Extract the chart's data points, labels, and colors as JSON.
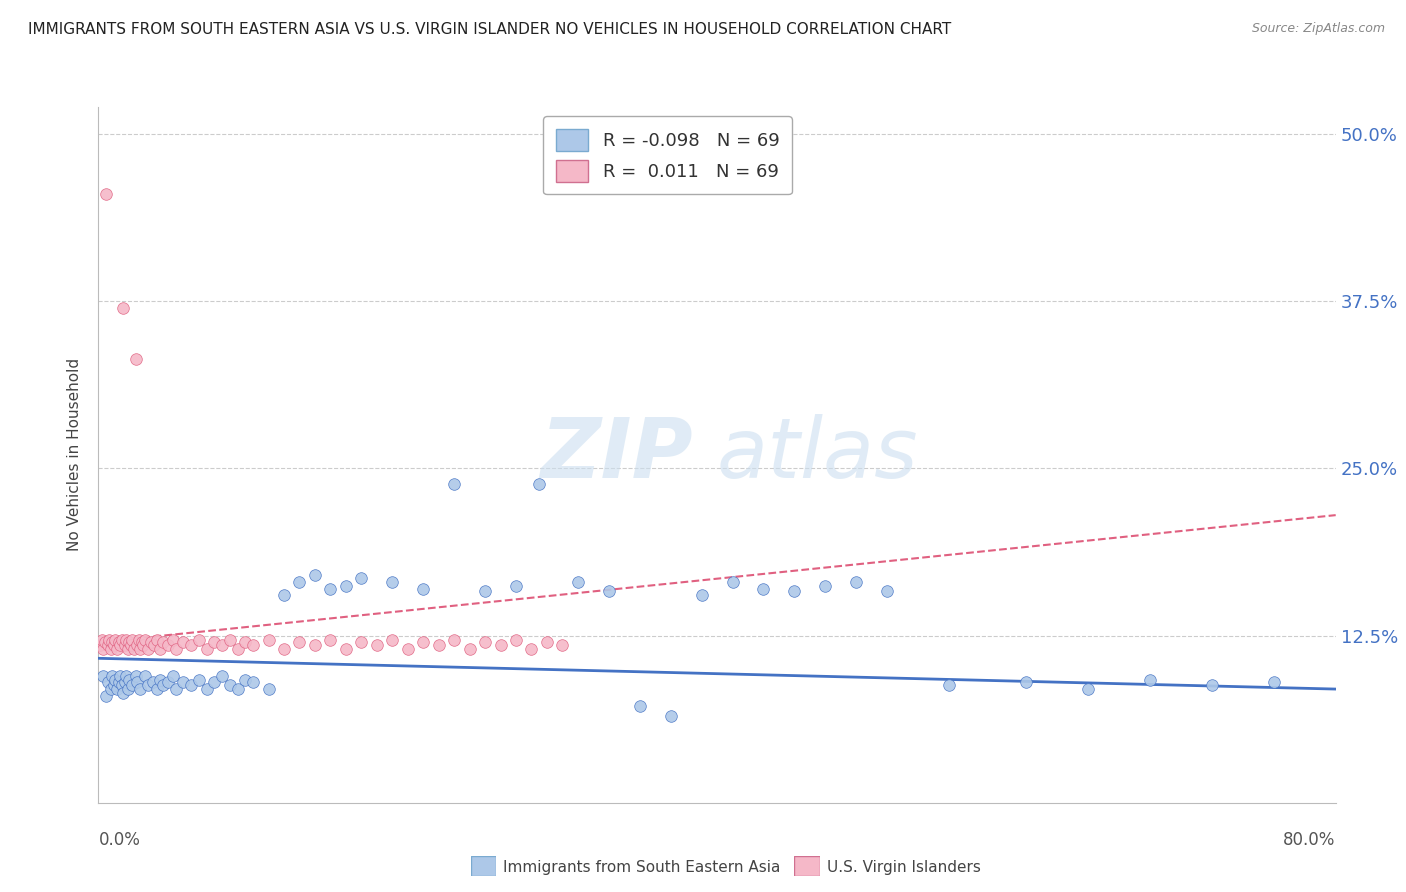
{
  "title": "IMMIGRANTS FROM SOUTH EASTERN ASIA VS U.S. VIRGIN ISLANDER NO VEHICLES IN HOUSEHOLD CORRELATION CHART",
  "source": "Source: ZipAtlas.com",
  "ylabel": "No Vehicles in Household",
  "yticks": [
    0.0,
    0.125,
    0.25,
    0.375,
    0.5
  ],
  "ytick_labels": [
    "",
    "12.5%",
    "25.0%",
    "37.5%",
    "50.0%"
  ],
  "xlim": [
    0.0,
    0.8
  ],
  "ylim": [
    0.0,
    0.52
  ],
  "legend1_label": "Immigrants from South Eastern Asia",
  "legend2_label": "U.S. Virgin Islanders",
  "r1": -0.098,
  "n1": 69,
  "r2": 0.011,
  "n2": 69,
  "color_blue": "#adc8e8",
  "color_pink": "#f5b8c8",
  "color_blue_line": "#4472c4",
  "color_pink_line": "#e06080",
  "watermark_zip": "ZIP",
  "watermark_atlas": "atlas",
  "blue_trend_x0": 0.0,
  "blue_trend_y0": 0.108,
  "blue_trend_x1": 0.8,
  "blue_trend_y1": 0.085,
  "pink_trend_x0": 0.0,
  "pink_trend_y0": 0.12,
  "pink_trend_x1": 0.8,
  "pink_trend_y1": 0.215,
  "blue_x": [
    0.003,
    0.005,
    0.006,
    0.008,
    0.009,
    0.01,
    0.011,
    0.012,
    0.013,
    0.014,
    0.015,
    0.016,
    0.017,
    0.018,
    0.019,
    0.02,
    0.022,
    0.024,
    0.025,
    0.027,
    0.03,
    0.032,
    0.035,
    0.038,
    0.04,
    0.042,
    0.045,
    0.048,
    0.05,
    0.055,
    0.06,
    0.065,
    0.07,
    0.075,
    0.08,
    0.085,
    0.09,
    0.095,
    0.1,
    0.11,
    0.12,
    0.13,
    0.14,
    0.15,
    0.16,
    0.17,
    0.19,
    0.21,
    0.23,
    0.25,
    0.27,
    0.285,
    0.31,
    0.33,
    0.35,
    0.37,
    0.39,
    0.41,
    0.43,
    0.45,
    0.47,
    0.49,
    0.51,
    0.55,
    0.6,
    0.64,
    0.68,
    0.72,
    0.76
  ],
  "blue_y": [
    0.095,
    0.08,
    0.09,
    0.085,
    0.095,
    0.088,
    0.092,
    0.085,
    0.09,
    0.095,
    0.088,
    0.082,
    0.09,
    0.095,
    0.085,
    0.092,
    0.088,
    0.095,
    0.09,
    0.085,
    0.095,
    0.088,
    0.09,
    0.085,
    0.092,
    0.088,
    0.09,
    0.095,
    0.085,
    0.09,
    0.088,
    0.092,
    0.085,
    0.09,
    0.095,
    0.088,
    0.085,
    0.092,
    0.09,
    0.085,
    0.155,
    0.165,
    0.17,
    0.16,
    0.162,
    0.168,
    0.165,
    0.16,
    0.238,
    0.158,
    0.162,
    0.238,
    0.165,
    0.158,
    0.072,
    0.065,
    0.155,
    0.165,
    0.16,
    0.158,
    0.162,
    0.165,
    0.158,
    0.088,
    0.09,
    0.085,
    0.092,
    0.088,
    0.09
  ],
  "pink_x": [
    0.001,
    0.002,
    0.003,
    0.004,
    0.005,
    0.006,
    0.007,
    0.008,
    0.009,
    0.01,
    0.011,
    0.012,
    0.013,
    0.014,
    0.015,
    0.016,
    0.017,
    0.018,
    0.019,
    0.02,
    0.021,
    0.022,
    0.023,
    0.024,
    0.025,
    0.026,
    0.027,
    0.028,
    0.029,
    0.03,
    0.032,
    0.034,
    0.036,
    0.038,
    0.04,
    0.042,
    0.045,
    0.048,
    0.05,
    0.055,
    0.06,
    0.065,
    0.07,
    0.075,
    0.08,
    0.085,
    0.09,
    0.095,
    0.1,
    0.11,
    0.12,
    0.13,
    0.14,
    0.15,
    0.16,
    0.17,
    0.18,
    0.19,
    0.2,
    0.21,
    0.22,
    0.23,
    0.24,
    0.25,
    0.26,
    0.27,
    0.28,
    0.29,
    0.3
  ],
  "pink_y": [
    0.118,
    0.122,
    0.115,
    0.12,
    0.455,
    0.118,
    0.122,
    0.115,
    0.12,
    0.118,
    0.122,
    0.115,
    0.12,
    0.118,
    0.122,
    0.37,
    0.118,
    0.122,
    0.115,
    0.12,
    0.118,
    0.122,
    0.115,
    0.332,
    0.118,
    0.122,
    0.115,
    0.12,
    0.118,
    0.122,
    0.115,
    0.12,
    0.118,
    0.122,
    0.115,
    0.12,
    0.118,
    0.122,
    0.115,
    0.12,
    0.118,
    0.122,
    0.115,
    0.12,
    0.118,
    0.122,
    0.115,
    0.12,
    0.118,
    0.122,
    0.115,
    0.12,
    0.118,
    0.122,
    0.115,
    0.12,
    0.118,
    0.122,
    0.115,
    0.12,
    0.118,
    0.122,
    0.115,
    0.12,
    0.118,
    0.122,
    0.115,
    0.12,
    0.118
  ]
}
